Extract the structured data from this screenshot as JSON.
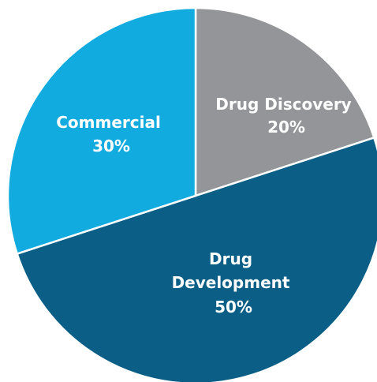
{
  "chart_data": {
    "type": "pie",
    "title": "",
    "slices": [
      {
        "label": "Drug Discovery",
        "value": 20,
        "display_value": "20%",
        "color": "#939598"
      },
      {
        "label": "Drug Development",
        "value": 50,
        "display_value": "50%",
        "color": "#0b5f87"
      },
      {
        "label": "Commercial",
        "value": 30,
        "display_value": "30%",
        "color": "#12abe0"
      }
    ],
    "start_angle_deg": 0,
    "direction": "clockwise",
    "slice_border_color": "#ffffff"
  }
}
